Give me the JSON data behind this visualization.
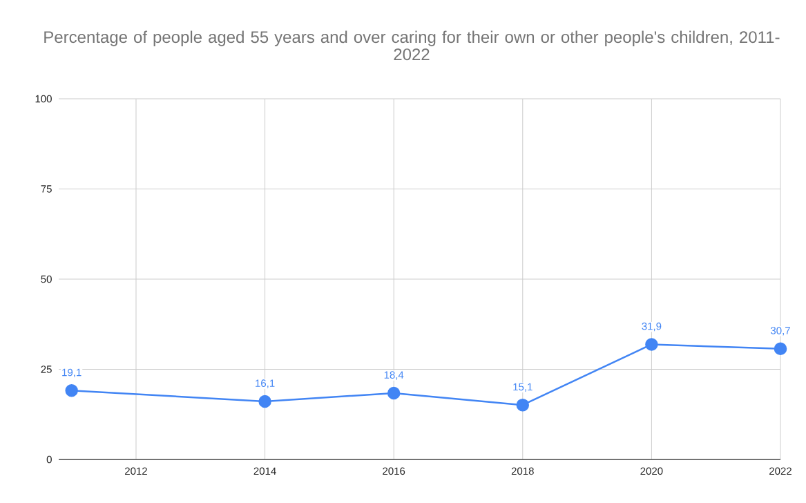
{
  "chart_data": {
    "type": "line",
    "title": "Percentage of people aged 55 years and over caring for their own or other people's children, 2011-2022",
    "x": [
      2011,
      2014,
      2016,
      2018,
      2020,
      2022
    ],
    "series": [
      {
        "color": "#4285f4",
        "values": [
          19.1,
          16.1,
          18.4,
          15.1,
          31.9,
          30.7
        ],
        "value_labels": [
          "19,1",
          "16,1",
          "18,4",
          "15,1",
          "31,9",
          "30,7"
        ]
      }
    ],
    "xlim": [
      2010.8,
      2022
    ],
    "xticks": [
      2012,
      2014,
      2016,
      2018,
      2020,
      2022
    ],
    "ylim": [
      0,
      100
    ],
    "yticks": [
      0,
      25,
      50,
      75,
      100
    ],
    "grid": true,
    "marker": "circle",
    "line_style": "solid"
  }
}
